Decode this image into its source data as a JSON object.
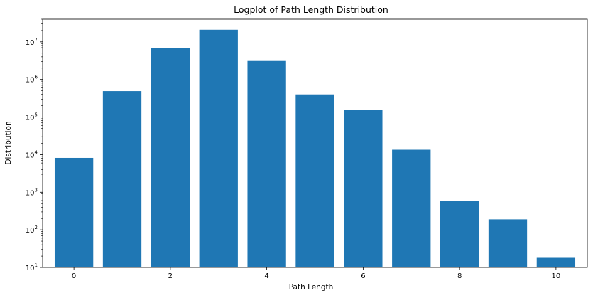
{
  "chart_data": {
    "type": "bar",
    "title": "Logplot of Path Length Distribution",
    "xlabel": "Path Length",
    "ylabel": "Distribution",
    "yscale": "log",
    "x": [
      0,
      1,
      2,
      3,
      4,
      5,
      6,
      7,
      8,
      9,
      10
    ],
    "values": [
      8200,
      490000,
      7000000,
      21000000,
      3100000,
      400000,
      155000,
      13500,
      580,
      190,
      18
    ],
    "xlim": [
      -0.65,
      10.65
    ],
    "ylim": [
      10,
      40000000
    ],
    "xticks": [
      0,
      2,
      4,
      6,
      8,
      10
    ],
    "xtick_labels": [
      "0",
      "2",
      "4",
      "6",
      "8",
      "10"
    ],
    "yticks": [
      10,
      100,
      1000,
      10000,
      100000,
      1000000,
      10000000
    ],
    "ytick_labels": [
      {
        "base": "10",
        "exp": "1"
      },
      {
        "base": "10",
        "exp": "2"
      },
      {
        "base": "10",
        "exp": "3"
      },
      {
        "base": "10",
        "exp": "4"
      },
      {
        "base": "10",
        "exp": "5"
      },
      {
        "base": "10",
        "exp": "6"
      },
      {
        "base": "10",
        "exp": "7"
      }
    ],
    "bar_width": 0.8,
    "grid": false,
    "legend": "none",
    "colors": {
      "bar": "#1f77b4",
      "axis": "#000000"
    }
  }
}
